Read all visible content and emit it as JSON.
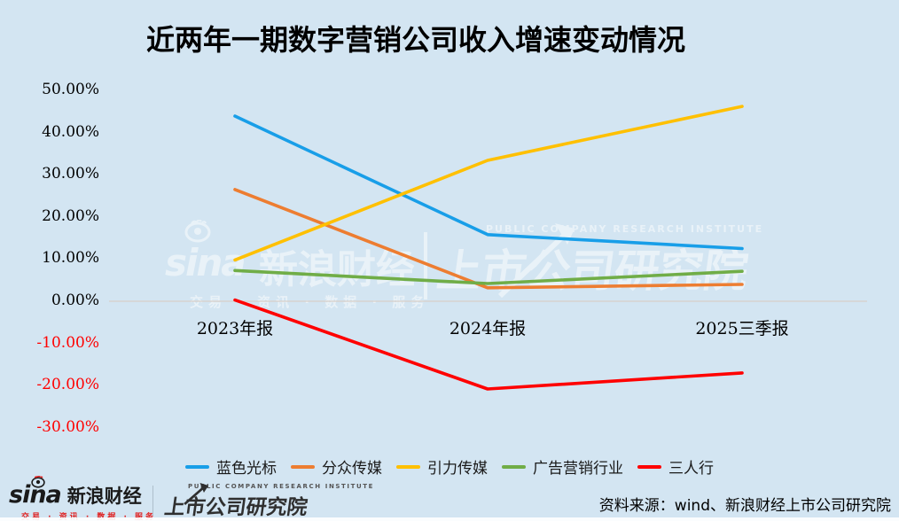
{
  "title": "近两年一期数字营销公司收入增速变动情况",
  "chart_data": {
    "type": "line",
    "title": "近两年一期数字营销公司收入增速变动情况",
    "categories": [
      "2023年报",
      "2024年报",
      "2025三季报"
    ],
    "series": [
      {
        "name": "蓝色光标",
        "color": "#189EE8",
        "values": [
          43.9,
          15.8,
          12.5
        ]
      },
      {
        "name": "分众传媒",
        "color": "#ED7D31",
        "values": [
          26.5,
          3.2,
          4.0
        ]
      },
      {
        "name": "引力传媒",
        "color": "#FFC000",
        "values": [
          9.8,
          33.4,
          46.2
        ]
      },
      {
        "name": "广告营销行业",
        "color": "#70AD47",
        "values": [
          7.3,
          4.2,
          7.1
        ]
      },
      {
        "name": "三人行",
        "color": "#FF0000",
        "values": [
          0.3,
          -20.8,
          -17.0
        ]
      }
    ],
    "yticks": [
      {
        "value": 50,
        "label": "50.00%"
      },
      {
        "value": 40,
        "label": "40.00%"
      },
      {
        "value": 30,
        "label": "30.00%"
      },
      {
        "value": 20,
        "label": "20.00%"
      },
      {
        "value": 10,
        "label": "10.00%"
      },
      {
        "value": 0,
        "label": "0.00%"
      },
      {
        "value": -10,
        "label": "-10.00%"
      },
      {
        "value": -20,
        "label": "-20.00%"
      },
      {
        "value": -30,
        "label": "-30.00%"
      }
    ],
    "ylim": [
      -30,
      50
    ],
    "ylabel": "",
    "xlabel": "",
    "grid": "zero-line-only",
    "legend_position": "bottom",
    "negative_tick_color": "#FF0000"
  },
  "watermark": {
    "sina_word": "sina",
    "brand": "新浪财经",
    "tagline": "交易 · 资讯 · 数据 · 服务",
    "institute_en": "PUBLIC COMPANY RESEARCH INSTITUTE",
    "institute_cn": "上市公司研究院"
  },
  "footer": {
    "sina_word": "sina",
    "brand": "新浪财经",
    "tagline": "交易 · 资讯 · 数据 · 服务",
    "institute_en": "PUBLIC COMPANY RESEARCH INSTITUTE",
    "institute_cn": "上市公司研究院",
    "source": "资料来源：wind、新浪财经上市公司研究院"
  },
  "colors": {
    "background": "#D3E5F2",
    "zero_line": "#D8CFC8"
  }
}
